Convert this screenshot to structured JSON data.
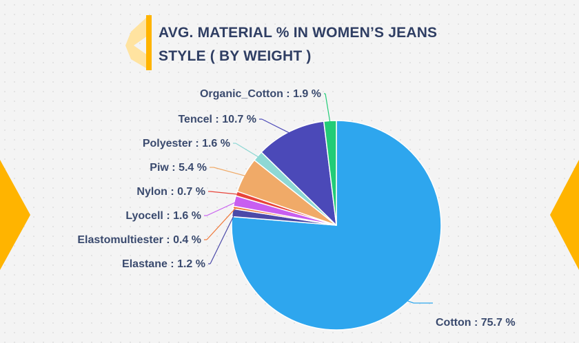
{
  "title": {
    "line1": "AVG. MATERIAL % IN WOMEN’S JEANS",
    "line2": "STYLE ( BY WEIGHT )"
  },
  "colors": {
    "title": "#2f3e63",
    "label": "#3a4a6e",
    "accent": "#ffb400",
    "accent_light": "#ffe3a0"
  },
  "chart_data": {
    "type": "pie",
    "title": "AVG. MATERIAL % IN WOMEN’S JEANS STYLE ( BY WEIGHT )",
    "unit": "%",
    "slices": [
      {
        "label": "Cotton",
        "value": 75.7,
        "display": "Cotton : 75.7 %",
        "color": "#2ea6ee"
      },
      {
        "label": "Elastane",
        "value": 1.2,
        "display": "Elastane : 1.2 %",
        "color": "#4b49a8"
      },
      {
        "label": "Elastomultiester",
        "value": 0.4,
        "display": "Elastomultiester : 0.4 %",
        "color": "#f07838"
      },
      {
        "label": "Lyocell",
        "value": 1.6,
        "display": "Lyocell : 1.6 %",
        "color": "#c85ef0"
      },
      {
        "label": "Nylon",
        "value": 0.7,
        "display": "Nylon : 0.7 %",
        "color": "#e8443a"
      },
      {
        "label": "Piw",
        "value": 5.4,
        "display": "Piw : 5.4 %",
        "color": "#f0aa68"
      },
      {
        "label": "Polyester",
        "value": 1.6,
        "display": "Polyester : 1.6 %",
        "color": "#8ed8d4"
      },
      {
        "label": "Tencel",
        "value": 10.7,
        "display": "Tencel : 10.7 %",
        "color": "#4b49b8"
      },
      {
        "label": "Organic_Cotton",
        "value": 1.9,
        "display": "Organic_Cotton : 1.9 %",
        "color": "#22cc77"
      }
    ]
  }
}
